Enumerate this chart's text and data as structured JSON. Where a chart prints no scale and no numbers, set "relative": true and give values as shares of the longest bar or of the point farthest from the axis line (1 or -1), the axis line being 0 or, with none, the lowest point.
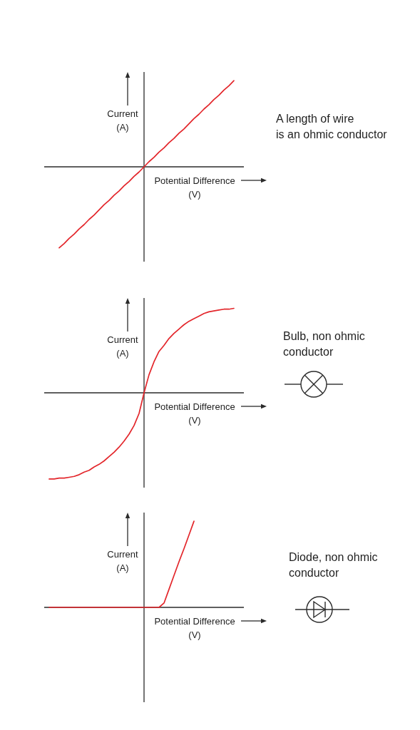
{
  "chart_data": [
    {
      "type": "line",
      "annotations": [
        "A length of wire\nis an ohmic conductor"
      ],
      "xlabel": "Potential Difference\n(V)",
      "ylabel": "Current\n(A)",
      "relative": true,
      "marker": "none",
      "tick_labels": false,
      "color": "#e3262b",
      "categories": [
        null,
        null,
        null,
        null,
        null,
        null,
        null,
        null,
        null,
        null,
        null,
        null,
        null,
        null,
        null,
        null,
        null,
        null,
        null,
        null,
        null,
        null,
        null,
        null,
        null,
        null,
        null,
        null,
        null,
        null,
        null,
        null,
        null,
        null,
        null,
        null,
        null,
        null,
        null,
        null,
        null
      ],
      "values": [
        null,
        null,
        null,
        -0.94,
        -0.89,
        -0.83,
        -0.78,
        -0.72,
        -0.67,
        -0.61,
        -0.56,
        -0.5,
        -0.44,
        -0.39,
        -0.33,
        -0.28,
        -0.22,
        -0.17,
        -0.11,
        -0.06,
        0,
        0.06,
        0.11,
        0.17,
        0.22,
        0.28,
        0.33,
        0.39,
        0.44,
        0.5,
        0.56,
        0.61,
        0.67,
        0.72,
        0.78,
        0.83,
        0.89,
        0.94,
        1,
        null,
        null
      ]
    },
    {
      "type": "line",
      "annotations": [
        "Bulb, non ohmic\nconductor"
      ],
      "xlabel": "Potential Difference\n(V)",
      "ylabel": "Current\n(A)",
      "relative": true,
      "marker": "none",
      "tick_labels": false,
      "color": "#e3262b",
      "categories": [
        null,
        null,
        null,
        null,
        null,
        null,
        null,
        null,
        null,
        null,
        null,
        null,
        null,
        null,
        null,
        null,
        null,
        null,
        null,
        null,
        null,
        null,
        null,
        null,
        null,
        null,
        null,
        null,
        null,
        null,
        null,
        null,
        null,
        null,
        null,
        null,
        null,
        null,
        null,
        null,
        null
      ],
      "values": [
        null,
        -1,
        -1,
        -0.99,
        -0.99,
        -0.98,
        -0.97,
        -0.95,
        -0.92,
        -0.9,
        -0.86,
        -0.83,
        -0.79,
        -0.74,
        -0.69,
        -0.63,
        -0.56,
        -0.48,
        -0.38,
        -0.24,
        0,
        0.21,
        0.36,
        0.48,
        0.55,
        0.63,
        0.69,
        0.74,
        0.79,
        0.83,
        0.86,
        0.89,
        0.92,
        0.94,
        0.95,
        0.96,
        0.97,
        0.97,
        0.98,
        null,
        null
      ]
    },
    {
      "type": "line",
      "annotations": [
        "Diode, non ohmic\nconductor"
      ],
      "xlabel": "Potential Difference\n(V)",
      "ylabel": "Current\n(A)",
      "relative": true,
      "marker": "none",
      "tick_labels": false,
      "color": "#e3262b",
      "categories": [
        null,
        null,
        null,
        null,
        null,
        null,
        null,
        null,
        null,
        null,
        null,
        null,
        null,
        null,
        null,
        null,
        null,
        null,
        null,
        null,
        null,
        null,
        null,
        null,
        null,
        null,
        null,
        null,
        null,
        null,
        null,
        null,
        null,
        null,
        null,
        null,
        null,
        null,
        null,
        null,
        null
      ],
      "values": [
        null,
        0,
        0,
        0,
        0,
        0,
        0,
        0,
        0,
        0,
        0,
        0,
        0,
        0,
        0,
        0,
        0,
        0,
        0,
        0,
        0,
        0,
        0,
        0,
        0.05,
        0.21,
        0.37,
        0.53,
        0.68,
        0.84,
        1,
        null,
        null,
        null,
        null,
        null,
        null,
        null,
        null,
        null,
        null
      ]
    }
  ]
}
